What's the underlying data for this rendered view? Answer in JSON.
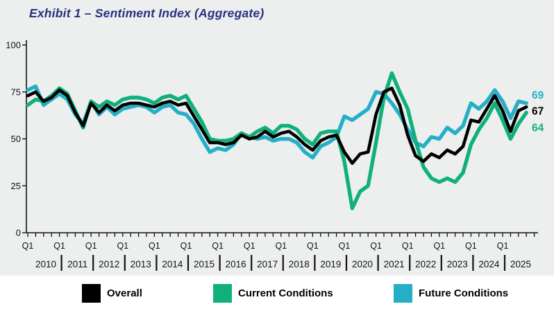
{
  "chart_data": {
    "type": "line",
    "title": "Exhibit 1 – Sentiment Index (Aggregate)",
    "xlabel": "",
    "ylabel": "",
    "ylim": [
      0,
      100
    ],
    "yticks": [
      0,
      25,
      50,
      75,
      100
    ],
    "grid": false,
    "plot_background": "#ecefee",
    "quarter_tick_label": "Q1",
    "years": [
      "2010",
      "2011",
      "2012",
      "2013",
      "2014",
      "2015",
      "2016",
      "2017",
      "2018",
      "2019",
      "2020",
      "2021",
      "2022",
      "2023",
      "2024",
      "2025"
    ],
    "x": [
      "2010 Q1",
      "2010 Q2",
      "2010 Q3",
      "2010 Q4",
      "2011 Q1",
      "2011 Q2",
      "2011 Q3",
      "2011 Q4",
      "2012 Q1",
      "2012 Q2",
      "2012 Q3",
      "2012 Q4",
      "2013 Q1",
      "2013 Q2",
      "2013 Q3",
      "2013 Q4",
      "2014 Q1",
      "2014 Q2",
      "2014 Q3",
      "2014 Q4",
      "2015 Q1",
      "2015 Q2",
      "2015 Q3",
      "2015 Q4",
      "2016 Q1",
      "2016 Q2",
      "2016 Q3",
      "2016 Q4",
      "2017 Q1",
      "2017 Q2",
      "2017 Q3",
      "2017 Q4",
      "2018 Q1",
      "2018 Q2",
      "2018 Q3",
      "2018 Q4",
      "2019 Q1",
      "2019 Q2",
      "2019 Q3",
      "2019 Q4",
      "2020 Q1",
      "2020 Q2",
      "2020 Q3",
      "2020 Q4",
      "2021 Q1",
      "2021 Q2",
      "2021 Q3",
      "2021 Q4",
      "2022 Q1",
      "2022 Q2",
      "2022 Q3",
      "2022 Q4",
      "2023 Q1",
      "2023 Q2",
      "2023 Q3",
      "2023 Q4",
      "2024 Q1",
      "2024 Q2",
      "2024 Q3",
      "2024 Q4",
      "2025 Q1",
      "2025 Q2",
      "2025 Q3",
      "2025 Q4"
    ],
    "series": [
      {
        "name": "Overall",
        "color": "#000000",
        "values": [
          73,
          75,
          70,
          72,
          76,
          73,
          64,
          57,
          69,
          64,
          68,
          65,
          68,
          69,
          69,
          68,
          67,
          69,
          70,
          68,
          69,
          62,
          55,
          48,
          48,
          47,
          48,
          52,
          50,
          51,
          54,
          51,
          53,
          54,
          51,
          47,
          44,
          49,
          51,
          52,
          43,
          37,
          42,
          43,
          63,
          75,
          77,
          68,
          52,
          41,
          38,
          42,
          40,
          44,
          42,
          46,
          60,
          59,
          66,
          73,
          65,
          54,
          65,
          67
        ]
      },
      {
        "name": "Current Conditions",
        "color": "#10b07c",
        "values": [
          68,
          71,
          70,
          73,
          77,
          74,
          65,
          56,
          70,
          67,
          70,
          68,
          71,
          72,
          72,
          71,
          69,
          72,
          73,
          71,
          73,
          66,
          59,
          50,
          49,
          49,
          50,
          53,
          51,
          54,
          56,
          53,
          57,
          57,
          55,
          50,
          47,
          53,
          54,
          54,
          38,
          13,
          22,
          25,
          48,
          72,
          85,
          75,
          66,
          49,
          35,
          29,
          27,
          29,
          27,
          32,
          47,
          55,
          61,
          69,
          60,
          50,
          58,
          64
        ]
      },
      {
        "name": "Future Conditions",
        "color": "#25afc6",
        "values": [
          76,
          78,
          68,
          71,
          74,
          71,
          63,
          58,
          70,
          63,
          67,
          63,
          66,
          67,
          68,
          67,
          64,
          67,
          68,
          64,
          63,
          58,
          50,
          43,
          45,
          44,
          47,
          53,
          51,
          50,
          51,
          49,
          50,
          50,
          48,
          43,
          40,
          46,
          48,
          51,
          62,
          60,
          63,
          66,
          75,
          74,
          69,
          63,
          55,
          48,
          46,
          51,
          50,
          56,
          53,
          57,
          69,
          66,
          70,
          76,
          70,
          61,
          70,
          69
        ]
      }
    ],
    "end_labels": [
      {
        "text": "69",
        "series": "Future Conditions"
      },
      {
        "text": "67",
        "series": "Overall"
      },
      {
        "text": "64",
        "series": "Current Conditions"
      }
    ],
    "legend_position": "bottom"
  },
  "legend": {
    "items": [
      {
        "label": "Overall",
        "color": "#000000"
      },
      {
        "label": "Current Conditions",
        "color": "#10b07c"
      },
      {
        "label": "Future Conditions",
        "color": "#25afc6"
      }
    ]
  }
}
